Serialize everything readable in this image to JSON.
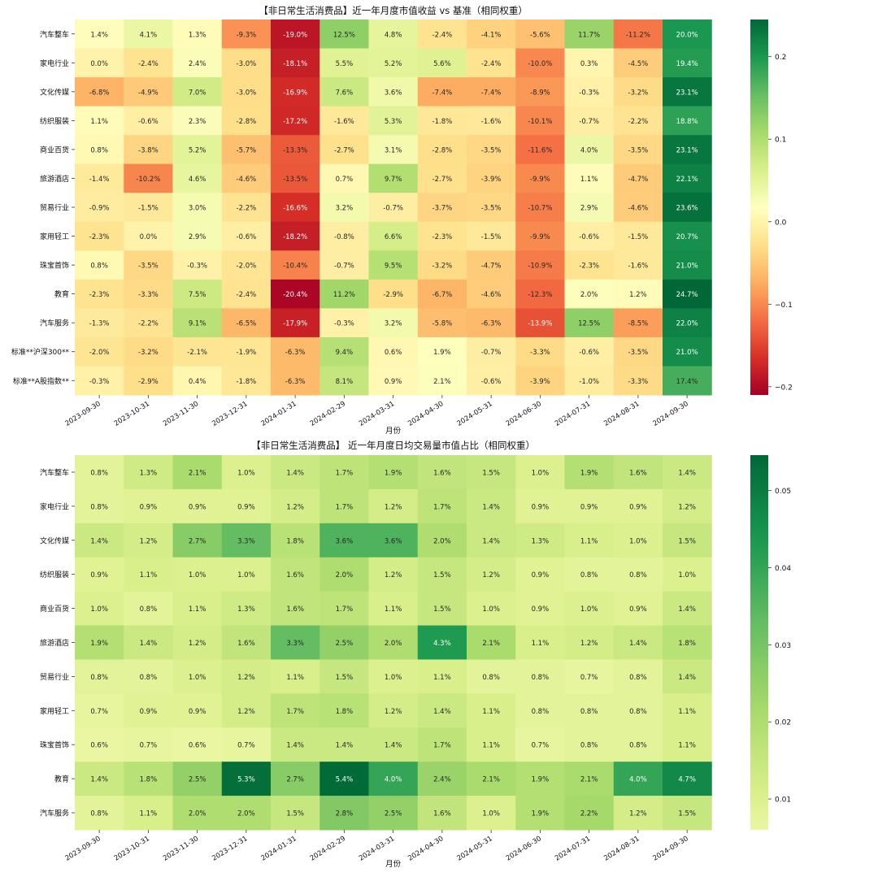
{
  "chart_data": [
    {
      "type": "heatmap",
      "title": "【非日常生活消费品】近一年月度市值收益 vs 基准（相同权重）",
      "xlabel": "月份",
      "ylabel": "",
      "x_categories": [
        "2023-09-30",
        "2023-10-31",
        "2023-11-30",
        "2023-12-31",
        "2024-01-31",
        "2024-02-29",
        "2024-03-31",
        "2024-04-30",
        "2024-05-31",
        "2024-06-30",
        "2024-07-31",
        "2024-08-31",
        "2024-09-30"
      ],
      "y_categories": [
        "汽车整车",
        "家电行业",
        "文化传媒",
        "纺织服装",
        "商业百货",
        "旅游酒店",
        "贸易行业",
        "家用轻工",
        "珠宝首饰",
        "教育",
        "汽车服务",
        "标准**沪深300**",
        "标准**A股指数**"
      ],
      "values": [
        [
          1.4,
          4.1,
          1.3,
          -9.3,
          -19.0,
          12.5,
          4.8,
          -2.4,
          -4.1,
          -5.6,
          11.7,
          -11.2,
          20.0
        ],
        [
          0.0,
          -2.4,
          2.4,
          -3.0,
          -18.1,
          5.5,
          5.2,
          5.6,
          -2.4,
          -10.0,
          0.3,
          -4.5,
          19.4
        ],
        [
          -6.8,
          -4.9,
          7.0,
          -3.0,
          -16.9,
          7.6,
          3.6,
          -7.4,
          -7.4,
          -8.9,
          -0.3,
          -3.2,
          23.1
        ],
        [
          1.1,
          -0.6,
          2.3,
          -2.8,
          -17.2,
          -1.6,
          5.3,
          -1.8,
          -1.6,
          -10.1,
          -0.7,
          -2.2,
          18.8
        ],
        [
          0.8,
          -3.8,
          5.2,
          -5.7,
          -13.3,
          -2.7,
          3.1,
          -2.8,
          -3.5,
          -11.6,
          4.0,
          -3.5,
          23.1
        ],
        [
          -1.4,
          -10.2,
          4.6,
          -4.6,
          -13.5,
          0.7,
          9.7,
          -2.7,
          -3.9,
          -9.9,
          1.1,
          -4.7,
          22.1
        ],
        [
          -0.9,
          -1.5,
          3.0,
          -2.2,
          -16.6,
          3.2,
          -0.7,
          -3.7,
          -3.5,
          -10.7,
          2.9,
          -4.6,
          23.6
        ],
        [
          -2.3,
          0.0,
          2.9,
          -0.6,
          -18.2,
          -0.8,
          6.6,
          -2.3,
          -1.5,
          -9.9,
          -0.6,
          -1.5,
          20.7
        ],
        [
          0.8,
          -3.5,
          -0.3,
          -2.0,
          -10.4,
          -0.7,
          9.5,
          -3.2,
          -4.7,
          -10.9,
          -2.3,
          -1.6,
          21.0
        ],
        [
          -2.3,
          -3.3,
          7.5,
          -2.4,
          -20.4,
          11.2,
          -2.9,
          -6.7,
          -4.6,
          -12.3,
          2.0,
          1.2,
          24.7
        ],
        [
          -1.3,
          -2.2,
          9.1,
          -6.5,
          -17.9,
          -0.3,
          3.2,
          -5.8,
          -6.3,
          -13.9,
          12.5,
          -8.5,
          22.0
        ],
        [
          -2.0,
          -3.2,
          -2.1,
          -1.9,
          -6.3,
          9.4,
          0.6,
          1.9,
          -0.7,
          -3.3,
          -0.6,
          -3.5,
          21.0
        ],
        [
          -0.3,
          -2.9,
          0.4,
          -1.8,
          -6.3,
          8.1,
          0.9,
          2.1,
          -0.6,
          -3.9,
          -1.0,
          -3.3,
          17.4
        ]
      ],
      "value_format": "percent",
      "colormap": "RdYlGn",
      "color_range": [
        -0.21,
        0.245
      ],
      "colorbar_ticks": [
        -0.2,
        -0.1,
        0.0,
        0.1,
        0.2
      ],
      "colorbar_labels": [
        "−0.2",
        "−0.1",
        "0.0",
        "0.1",
        "0.2"
      ]
    },
    {
      "type": "heatmap",
      "title": "【非日常生活消费品】 近一年月度日均交易量市值占比（相同权重）",
      "xlabel": "月份",
      "ylabel": "",
      "x_categories": [
        "2023-09-30",
        "2023-10-31",
        "2023-11-30",
        "2023-12-31",
        "2024-01-31",
        "2024-02-29",
        "2024-03-31",
        "2024-04-30",
        "2024-05-31",
        "2024-06-30",
        "2024-07-31",
        "2024-08-31",
        "2024-09-30"
      ],
      "y_categories": [
        "汽车整车",
        "家电行业",
        "文化传媒",
        "纺织服装",
        "商业百货",
        "旅游酒店",
        "贸易行业",
        "家用轻工",
        "珠宝首饰",
        "教育",
        "汽车服务"
      ],
      "values": [
        [
          0.8,
          1.3,
          2.1,
          1.0,
          1.4,
          1.7,
          1.9,
          1.6,
          1.5,
          1.0,
          1.9,
          1.6,
          1.4
        ],
        [
          0.8,
          0.9,
          0.9,
          0.9,
          1.2,
          1.7,
          1.2,
          1.7,
          1.4,
          0.9,
          0.9,
          0.9,
          1.2
        ],
        [
          1.4,
          1.2,
          2.7,
          3.3,
          1.8,
          3.6,
          3.6,
          2.0,
          1.4,
          1.3,
          1.1,
          1.0,
          1.5
        ],
        [
          0.9,
          1.1,
          1.0,
          1.0,
          1.6,
          2.0,
          1.2,
          1.5,
          1.2,
          0.9,
          0.8,
          0.8,
          1.0
        ],
        [
          1.0,
          0.8,
          1.1,
          1.3,
          1.6,
          1.7,
          1.1,
          1.5,
          1.0,
          0.9,
          1.0,
          0.9,
          1.4
        ],
        [
          1.9,
          1.4,
          1.2,
          1.6,
          3.3,
          2.5,
          2.0,
          4.3,
          2.1,
          1.1,
          1.2,
          1.4,
          1.8
        ],
        [
          0.8,
          0.8,
          1.0,
          1.2,
          1.1,
          1.5,
          1.0,
          1.1,
          0.8,
          0.8,
          0.7,
          0.8,
          1.4
        ],
        [
          0.7,
          0.9,
          0.9,
          1.2,
          1.7,
          1.8,
          1.2,
          1.4,
          1.1,
          0.8,
          0.8,
          0.8,
          1.1
        ],
        [
          0.6,
          0.7,
          0.6,
          0.7,
          1.4,
          1.4,
          1.4,
          1.7,
          1.1,
          0.7,
          0.8,
          0.8,
          1.1
        ],
        [
          1.4,
          1.8,
          2.5,
          5.3,
          2.7,
          5.4,
          4.0,
          2.4,
          2.1,
          1.9,
          2.1,
          4.0,
          4.7
        ],
        [
          0.8,
          1.1,
          2.0,
          2.0,
          1.5,
          2.8,
          2.5,
          1.6,
          1.0,
          1.9,
          2.2,
          1.2,
          1.5
        ]
      ],
      "value_format": "percent",
      "colormap": "RdYlGn",
      "color_range": [
        -0.0546,
        0.0546
      ],
      "colorbar_visible_range": [
        0.006,
        0.0546
      ],
      "colorbar_ticks": [
        0.01,
        0.02,
        0.03,
        0.04,
        0.05
      ],
      "colorbar_labels": [
        "0.01",
        "0.02",
        "0.03",
        "0.04",
        "0.05"
      ]
    }
  ]
}
